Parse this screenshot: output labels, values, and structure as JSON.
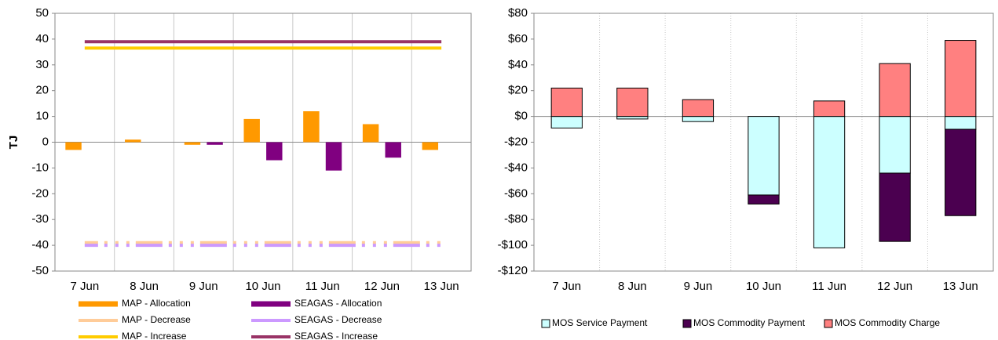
{
  "chart_data": [
    {
      "type": "bar",
      "ylabel": "TJ",
      "categories": [
        "7 Jun",
        "8 Jun",
        "9 Jun",
        "10 Jun",
        "11 Jun",
        "12 Jun",
        "13 Jun"
      ],
      "ylim": [
        -50,
        50
      ],
      "yticks": [
        -50,
        -40,
        -30,
        -20,
        -10,
        0,
        10,
        20,
        30,
        40,
        50
      ],
      "grid": true,
      "series": [
        {
          "name": "MAP - Allocation",
          "color": "#ff9900",
          "values": [
            -3,
            1,
            -1,
            9,
            12,
            7,
            -3
          ]
        },
        {
          "name": "SEAGAS - Allocation",
          "color": "#800080",
          "values": [
            0,
            0,
            -1,
            -7,
            -11,
            -6,
            0
          ]
        },
        {
          "name": "MAP - Decrease",
          "color": "#ffcc99",
          "type": "line",
          "dashed": true,
          "values": [
            -39,
            -39,
            -39,
            -39,
            -39,
            -39,
            -39
          ]
        },
        {
          "name": "SEAGAS - Decrease",
          "color": "#cc99ff",
          "type": "line",
          "dashed": true,
          "values": [
            -40,
            -40,
            -40,
            -40,
            -40,
            -40,
            -40
          ]
        },
        {
          "name": "MAP - Increase",
          "color": "#ffcc00",
          "type": "line",
          "values": [
            36.5,
            36.5,
            36.5,
            36.5,
            36.5,
            36.5,
            36.5
          ]
        },
        {
          "name": "SEAGAS - Increase",
          "color": "#993366",
          "type": "line",
          "values": [
            39,
            39,
            39,
            39,
            39,
            39,
            39
          ]
        }
      ]
    },
    {
      "type": "bar",
      "stacked": true,
      "categories": [
        "7 Jun",
        "8 Jun",
        "9 Jun",
        "10 Jun",
        "11 Jun",
        "12 Jun",
        "13 Jun"
      ],
      "ylim": [
        -120,
        80
      ],
      "yticks": [
        {
          "value": -120,
          "label": "-$120"
        },
        {
          "value": -100,
          "label": "-$100"
        },
        {
          "value": -80,
          "label": "-$80"
        },
        {
          "value": -60,
          "label": "-$60"
        },
        {
          "value": -40,
          "label": "-$40"
        },
        {
          "value": -20,
          "label": "-$20"
        },
        {
          "value": 0,
          "label": "$0"
        },
        {
          "value": 20,
          "label": "$20"
        },
        {
          "value": 40,
          "label": "$40"
        },
        {
          "value": 60,
          "label": "$60"
        },
        {
          "value": 80,
          "label": "$80"
        }
      ],
      "grid": true,
      "series": [
        {
          "name": "MOS Service Payment",
          "color": "#ccffff",
          "values": [
            -9,
            -2,
            -4,
            -61,
            -102,
            -44,
            -10
          ]
        },
        {
          "name": "MOS Commodity Payment",
          "color": "#4b0050",
          "values": [
            0,
            0,
            0,
            -7,
            0,
            -53,
            -67
          ]
        },
        {
          "name": "MOS Commodity Charge",
          "color": "#ff8080",
          "values": [
            22,
            22,
            13,
            0,
            12,
            41,
            59
          ]
        }
      ]
    }
  ]
}
